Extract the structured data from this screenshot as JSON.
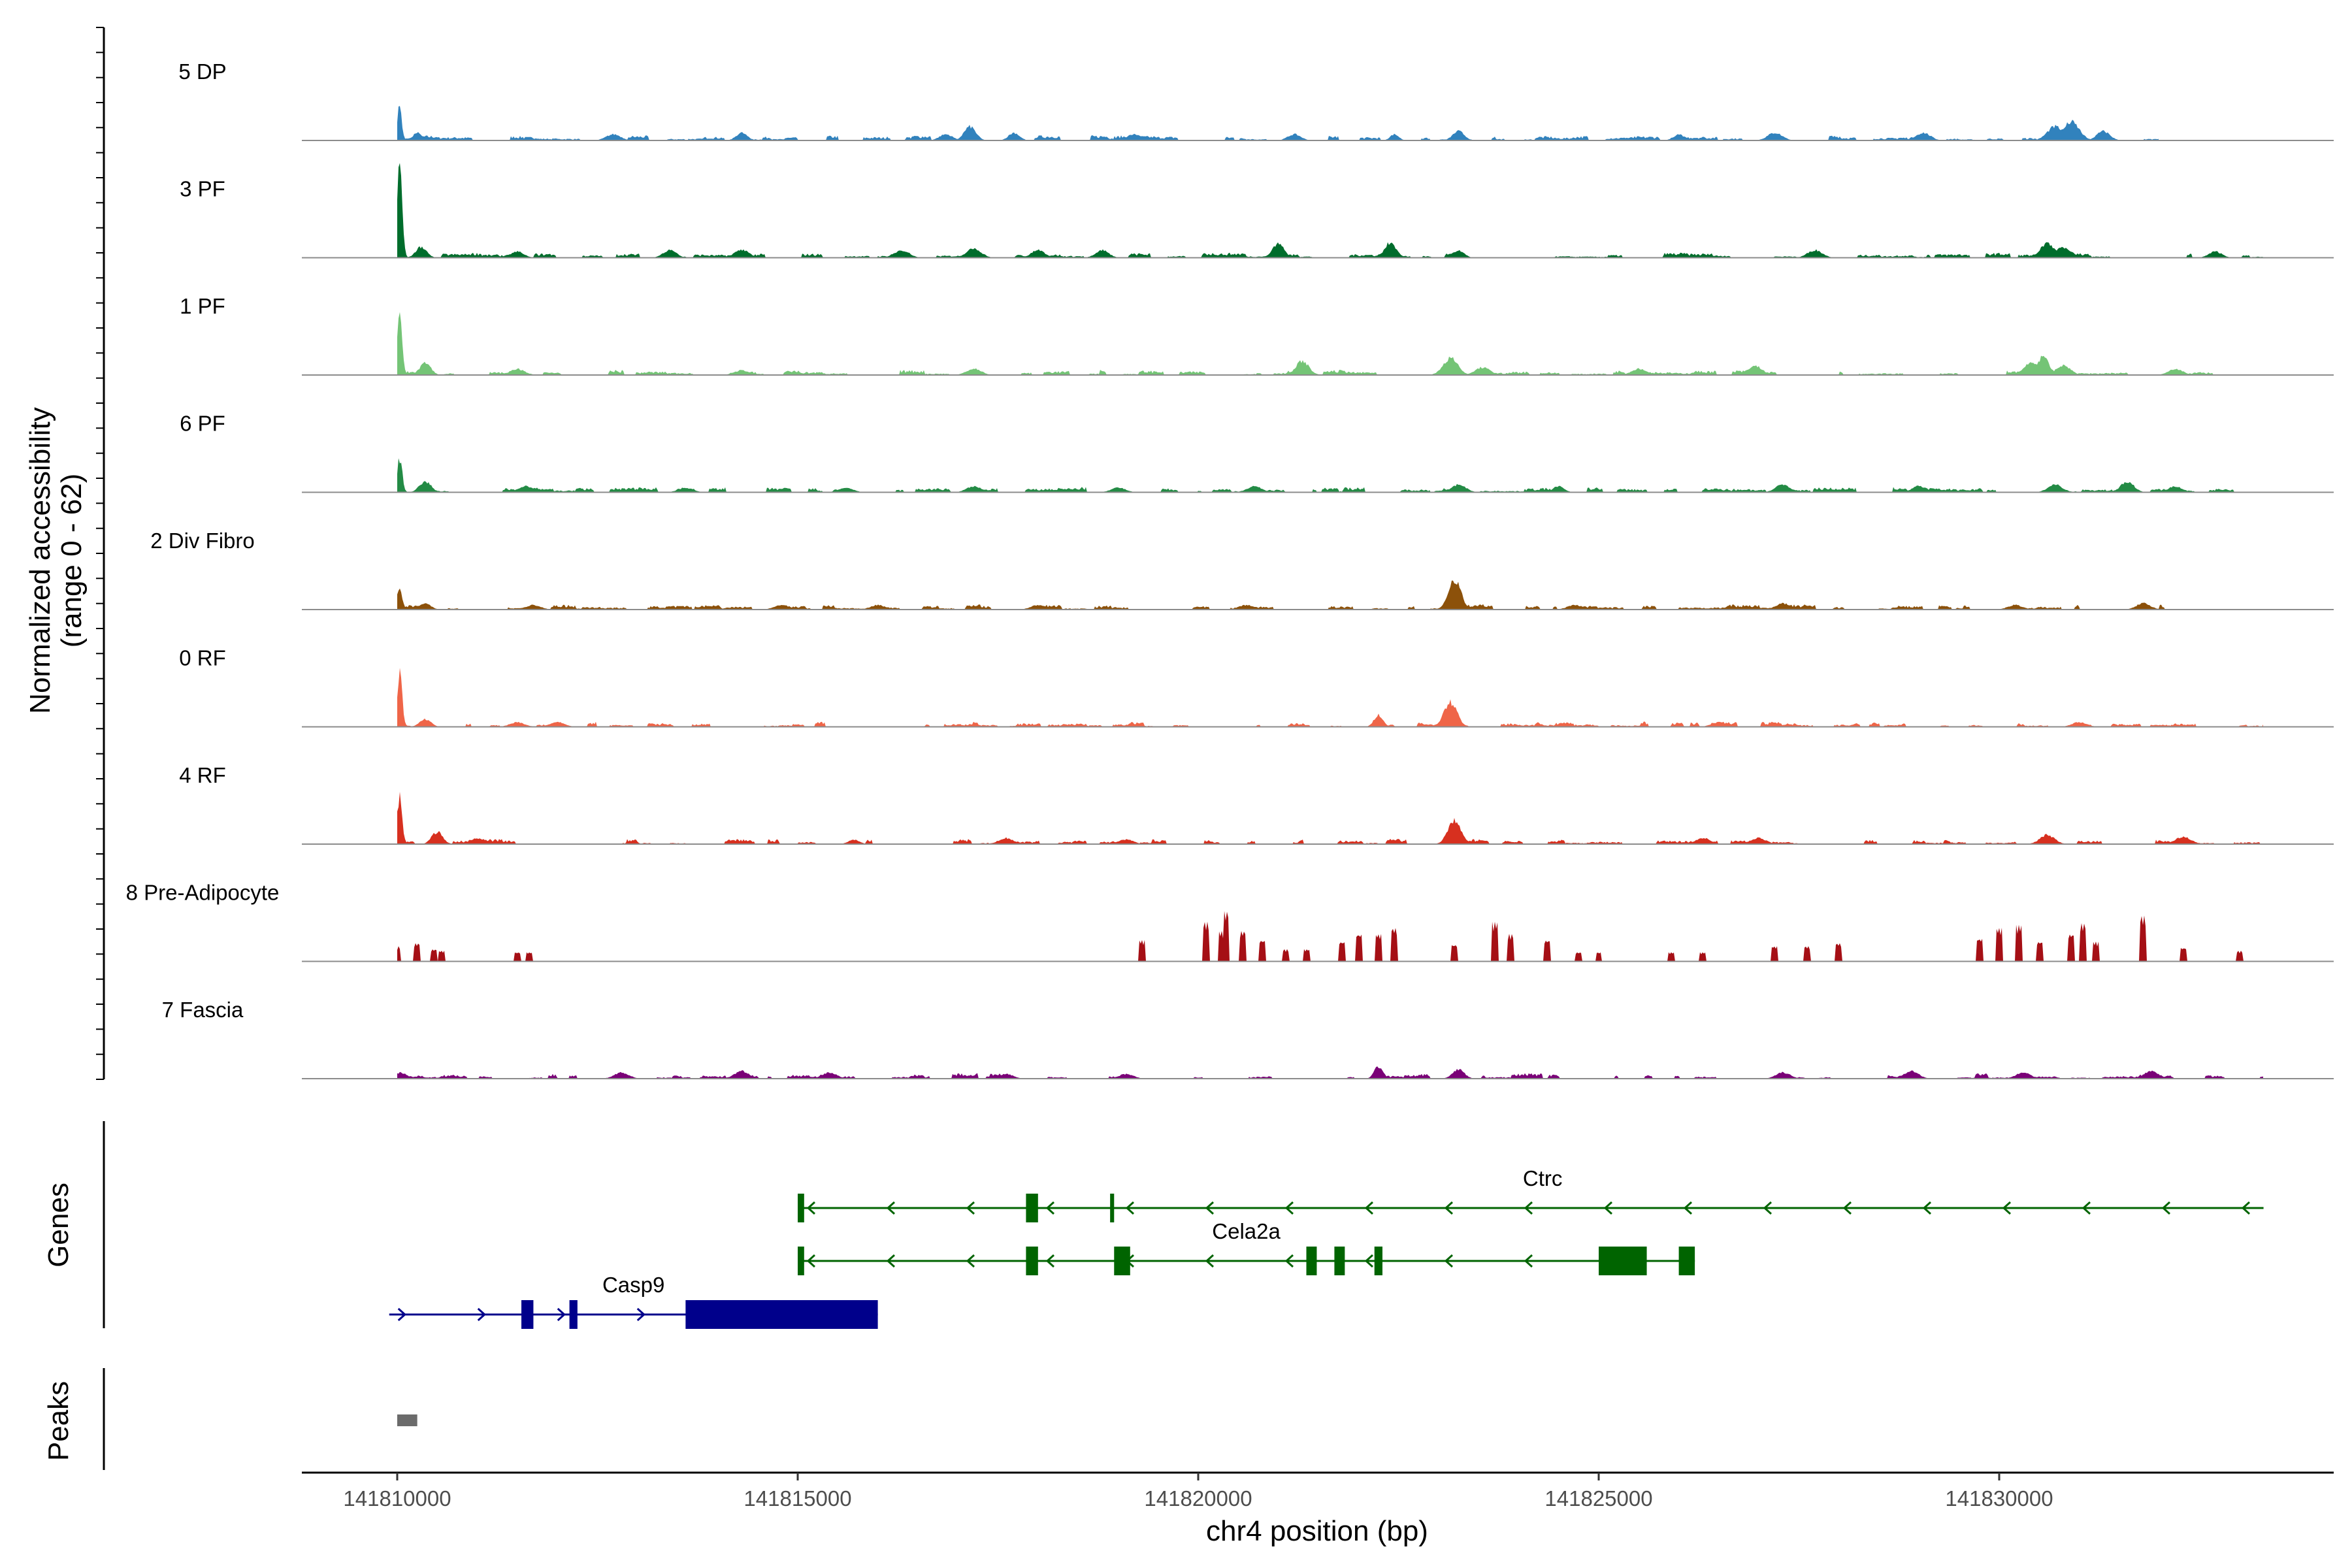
{
  "chart_data": {
    "type": "area",
    "title": "",
    "xlabel": "chr4 position (bp)",
    "ylabel": "Normalized accessibility",
    "ylabel_sub": "(range 0 - 62)",
    "genes_label": "Genes",
    "peaks_label": "Peaks",
    "xlim": [
      141808800,
      141834300
    ],
    "ylim": [
      0,
      62
    ],
    "x_ticks": [
      141810000,
      141815000,
      141820000,
      141825000,
      141830000
    ],
    "x_tick_labels": [
      "141810000",
      "141815000",
      "141820000",
      "141825000",
      "141830000"
    ],
    "series": [
      {
        "name": "5 DP",
        "label": "5 DP",
        "color": "#3182bd",
        "data_start": 141810000,
        "data_end": 141832000,
        "peaks": [
          [
            141810030,
            22,
            60
          ],
          [
            141810250,
            5,
            120
          ],
          [
            141812700,
            4,
            200
          ],
          [
            141814300,
            5,
            150
          ],
          [
            141816850,
            4,
            180
          ],
          [
            141817150,
            9,
            160
          ],
          [
            141817700,
            5,
            150
          ],
          [
            141819200,
            4,
            200
          ],
          [
            141821200,
            4,
            180
          ],
          [
            141822450,
            4,
            120
          ],
          [
            141823250,
            6,
            160
          ],
          [
            141826000,
            4,
            150
          ],
          [
            141827200,
            5,
            200
          ],
          [
            141829050,
            5,
            200
          ],
          [
            141830700,
            9,
            220
          ],
          [
            141830900,
            12,
            220
          ],
          [
            141831300,
            6,
            180
          ]
        ]
      },
      {
        "name": "3 PF",
        "label": "3 PF",
        "color": "#006d2c",
        "data_start": 141810000,
        "data_end": 141833300,
        "peaks": [
          [
            141810030,
            62,
            70
          ],
          [
            141810300,
            7,
            150
          ],
          [
            141811500,
            4,
            180
          ],
          [
            141813400,
            5,
            180
          ],
          [
            141814300,
            5,
            200
          ],
          [
            141816300,
            5,
            200
          ],
          [
            141817200,
            6,
            200
          ],
          [
            141818000,
            5,
            180
          ],
          [
            141818800,
            5,
            180
          ],
          [
            141821000,
            9,
            160
          ],
          [
            141822400,
            10,
            160
          ],
          [
            141823250,
            5,
            150
          ],
          [
            141827700,
            5,
            200
          ],
          [
            141830600,
            9,
            200
          ],
          [
            141830800,
            7,
            220
          ],
          [
            141832700,
            4,
            180
          ]
        ]
      },
      {
        "name": "1 PF",
        "label": "1 PF",
        "color": "#74c476",
        "data_start": 141810000,
        "data_end": 141833300,
        "peaks": [
          [
            141810030,
            37,
            70
          ],
          [
            141810350,
            8,
            150
          ],
          [
            141811500,
            4,
            200
          ],
          [
            141814300,
            3,
            200
          ],
          [
            141817200,
            4,
            200
          ],
          [
            141821300,
            9,
            180
          ],
          [
            141823150,
            11,
            200
          ],
          [
            141823550,
            5,
            200
          ],
          [
            141825500,
            4,
            200
          ],
          [
            141826950,
            6,
            200
          ],
          [
            141830400,
            8,
            200
          ],
          [
            141830550,
            12,
            160
          ],
          [
            141830800,
            6,
            200
          ],
          [
            141832200,
            4,
            200
          ]
        ]
      },
      {
        "name": "6 PF",
        "label": "6 PF",
        "color": "#238b45",
        "data_start": 141810000,
        "data_end": 141833000,
        "peaks": [
          [
            141810030,
            22,
            70
          ],
          [
            141810350,
            7,
            160
          ],
          [
            141811600,
            4,
            200
          ],
          [
            141813600,
            3,
            200
          ],
          [
            141815600,
            3,
            200
          ],
          [
            141817200,
            4,
            200
          ],
          [
            141819000,
            3,
            200
          ],
          [
            141820700,
            4,
            200
          ],
          [
            141823250,
            5,
            200
          ],
          [
            141824500,
            4,
            150
          ],
          [
            141827300,
            5,
            200
          ],
          [
            141829000,
            4,
            200
          ],
          [
            141830700,
            5,
            200
          ],
          [
            141831600,
            7,
            180
          ],
          [
            141832200,
            4,
            180
          ]
        ]
      },
      {
        "name": "2 Div Fibro",
        "label": "2 Div Fibro",
        "color": "#8c510a",
        "data_start": 141810000,
        "data_end": 141832600,
        "peaks": [
          [
            141810030,
            14,
            70
          ],
          [
            141810350,
            4,
            150
          ],
          [
            141811700,
            3,
            200
          ],
          [
            141814800,
            3,
            200
          ],
          [
            141816000,
            3,
            200
          ],
          [
            141818000,
            3,
            200
          ],
          [
            141820600,
            3,
            200
          ],
          [
            141823200,
            20,
            170
          ],
          [
            141824700,
            3,
            200
          ],
          [
            141827300,
            4,
            200
          ],
          [
            141830200,
            3,
            200
          ],
          [
            141831800,
            4,
            200
          ]
        ]
      },
      {
        "name": "0 RF",
        "label": "0 RF",
        "color": "#ef6548",
        "data_start": 141810000,
        "data_end": 141833300,
        "peaks": [
          [
            141810030,
            35,
            70
          ],
          [
            141810350,
            5,
            150
          ],
          [
            141811500,
            3,
            200
          ],
          [
            141812000,
            3,
            200
          ],
          [
            141822250,
            8,
            120
          ],
          [
            141823150,
            16,
            180
          ],
          [
            141826500,
            3,
            200
          ],
          [
            141831000,
            3,
            200
          ]
        ]
      },
      {
        "name": "4 RF",
        "label": "4 RF",
        "color": "#d7301f",
        "data_start": 141810000,
        "data_end": 141833300,
        "peaks": [
          [
            141810030,
            30,
            70
          ],
          [
            141810500,
            8,
            150
          ],
          [
            141811000,
            4,
            200
          ],
          [
            141815700,
            3,
            150
          ],
          [
            141817600,
            4,
            200
          ],
          [
            141819100,
            3,
            200
          ],
          [
            141823200,
            16,
            180
          ],
          [
            141826300,
            4,
            200
          ],
          [
            141827000,
            4,
            200
          ],
          [
            141830600,
            6,
            200
          ],
          [
            141832300,
            5,
            200
          ]
        ]
      },
      {
        "name": "8 Pre-Adipocyte",
        "label": "8 Pre-Adipocyte",
        "color": "#a50f15",
        "data_start": 141810000,
        "data_end": 141833300,
        "block_style": true,
        "peaks": [
          [
            141810000,
            10,
            80
          ],
          [
            141810250,
            12,
            80
          ],
          [
            141810450,
            8,
            80
          ],
          [
            141810550,
            7,
            80
          ],
          [
            141811500,
            6,
            80
          ],
          [
            141811650,
            6,
            80
          ],
          [
            141819300,
            14,
            80
          ],
          [
            141820100,
            26,
            80
          ],
          [
            141820300,
            20,
            80
          ],
          [
            141820350,
            33,
            80
          ],
          [
            141820550,
            20,
            80
          ],
          [
            141820800,
            14,
            80
          ],
          [
            141821100,
            8,
            80
          ],
          [
            141821350,
            8,
            80
          ],
          [
            141821800,
            13,
            80
          ],
          [
            141822000,
            18,
            80
          ],
          [
            141822250,
            18,
            80
          ],
          [
            141822450,
            22,
            80
          ],
          [
            141823200,
            11,
            80
          ],
          [
            141823700,
            26,
            80
          ],
          [
            141823900,
            18,
            80
          ],
          [
            141824350,
            14,
            80
          ],
          [
            141824750,
            6,
            80
          ],
          [
            141825000,
            6,
            80
          ],
          [
            141825900,
            6,
            80
          ],
          [
            141826300,
            6,
            80
          ],
          [
            141827200,
            10,
            80
          ],
          [
            141827600,
            10,
            80
          ],
          [
            141828000,
            12,
            80
          ],
          [
            141829750,
            15,
            80
          ],
          [
            141830000,
            22,
            80
          ],
          [
            141830250,
            24,
            80
          ],
          [
            141830500,
            13,
            80
          ],
          [
            141830900,
            18,
            80
          ],
          [
            141831050,
            25,
            80
          ],
          [
            141831200,
            13,
            80
          ],
          [
            141831800,
            30,
            80
          ],
          [
            141832300,
            9,
            80
          ],
          [
            141833000,
            7,
            80
          ]
        ]
      },
      {
        "name": "7 Fascia",
        "label": "7 Fascia",
        "color": "#7a0177",
        "data_start": 141810000,
        "data_end": 141833300,
        "peaks": [
          [
            141810050,
            4,
            150
          ],
          [
            141812800,
            4,
            200
          ],
          [
            141814300,
            5,
            200
          ],
          [
            141815400,
            4,
            200
          ],
          [
            141817600,
            3,
            200
          ],
          [
            141819100,
            3,
            200
          ],
          [
            141822250,
            8,
            120
          ],
          [
            141823250,
            6,
            160
          ],
          [
            141827300,
            4,
            200
          ],
          [
            141828900,
            5,
            200
          ],
          [
            141830300,
            4,
            200
          ],
          [
            141831900,
            5,
            200
          ]
        ]
      }
    ],
    "genes": [
      {
        "name": "Ctrc",
        "label": "Ctrc",
        "strand": "-",
        "color": "#006400",
        "row": 0,
        "start": 141815000,
        "end": 141833300,
        "label_x": 141824300,
        "exons": [
          [
            141815000,
            141815080
          ],
          [
            141817850,
            141818000
          ],
          [
            141818900,
            141818950
          ]
        ]
      },
      {
        "name": "Cela2a",
        "label": "Cela2a",
        "strand": "-",
        "color": "#006400",
        "row": 1,
        "start": 141815000,
        "end": 141826200,
        "label_x": 141820600,
        "exons": [
          [
            141815000,
            141815080
          ],
          [
            141817850,
            141818000
          ],
          [
            141818950,
            141819150
          ],
          [
            141821350,
            141821480
          ],
          [
            141821700,
            141821830
          ],
          [
            141822200,
            141822300
          ],
          [
            141825000,
            141825600
          ],
          [
            141826000,
            141826200
          ]
        ]
      },
      {
        "name": "Casp9",
        "label": "Casp9",
        "strand": "+",
        "color": "#00008b",
        "row": 2,
        "start": 141809900,
        "end": 141816000,
        "label_x": 141812950,
        "exons": [
          [
            141811550,
            141811700
          ],
          [
            141812150,
            141812250
          ],
          [
            141813600,
            141816000
          ]
        ]
      }
    ],
    "peak_regions": [
      [
        141810000,
        141810250
      ]
    ]
  }
}
